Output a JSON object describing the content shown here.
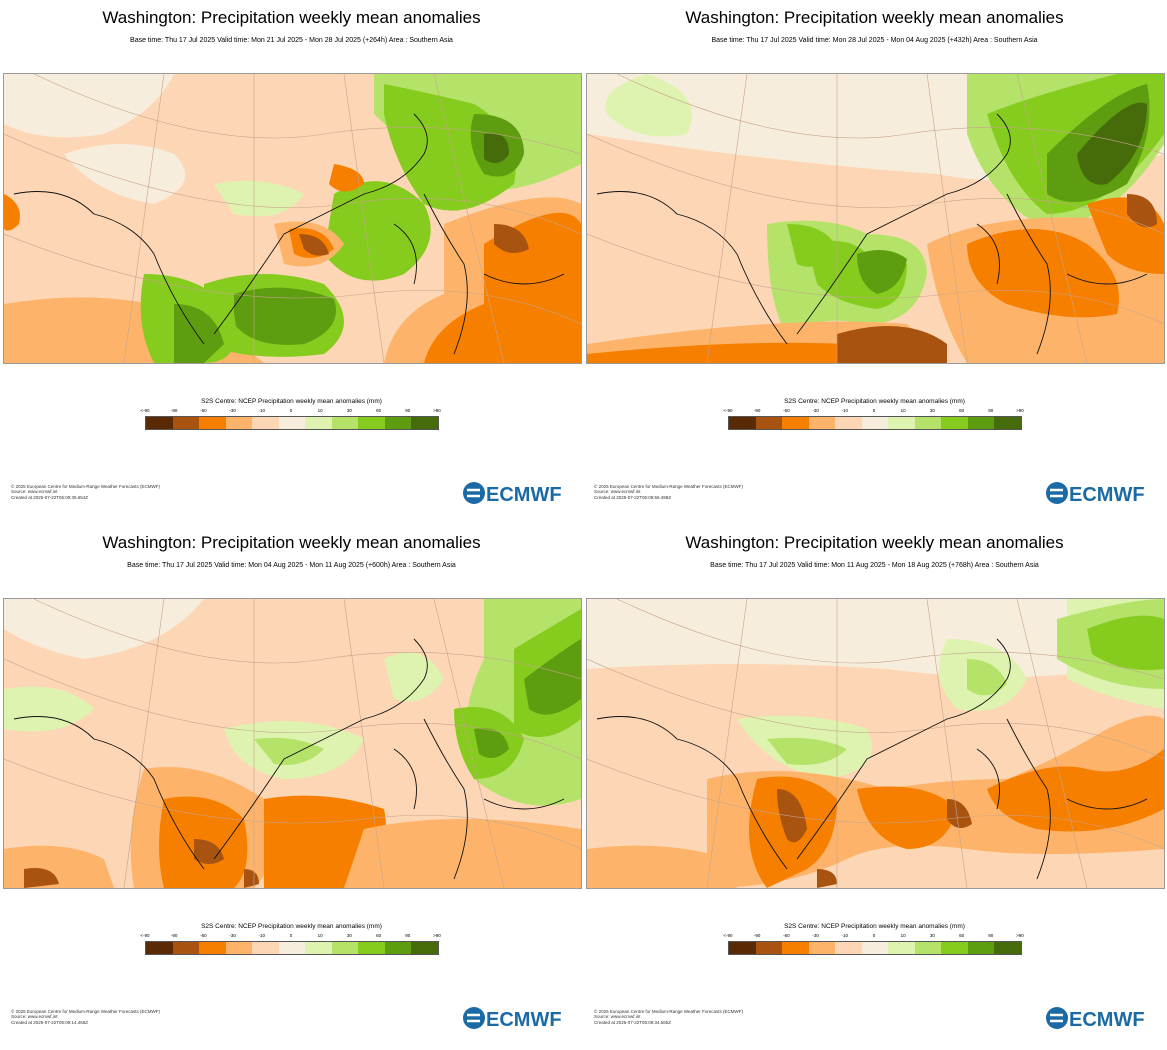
{
  "legend_colors": [
    "#5a2a05",
    "#a85310",
    "#f77f00",
    "#fdb46a",
    "#fdd6b5",
    "#f7eddc",
    "#dff3b0",
    "#b5e36a",
    "#86cc1f",
    "#5e9c10",
    "#466b0b"
  ],
  "legend_ticks": [
    "<-90",
    "-90",
    "-60",
    "-30",
    "-10",
    "0",
    "10",
    "30",
    "60",
    "90",
    ">90"
  ],
  "legend_title": "S2S Centre: NCEP Precipitation weekly mean anomalies (mm)",
  "logo_text": "ECMWF",
  "panels": [
    {
      "title": "Washington: Precipitation weekly mean anomalies",
      "subtitle": "Base time: Thu 17 Jul 2025 Valid time: Mon 21 Jul 2025 - Mon 28 Jul 2025 (+264h) Area : Southern Asia",
      "footer": [
        "© 2025 European Centre for Medium-Range Weather Forecasts (ECMWF)",
        "Source: www.ecmwf.int",
        "Created at 2025-07-22T05:09:35.654Z"
      ]
    },
    {
      "title": "Washington: Precipitation weekly mean anomalies",
      "subtitle": "Base time: Thu 17 Jul 2025 Valid time: Mon 28 Jul 2025 - Mon 04 Aug 2025 (+432h) Area : Southern Asia",
      "footer": [
        "© 2025 European Centre for Medium-Range Weather Forecasts (ECMWF)",
        "Source: www.ecmwf.int",
        "Created at 2025-07-22T05:09:56.498Z"
      ]
    },
    {
      "title": "Washington: Precipitation weekly mean anomalies",
      "subtitle": "Base time: Thu 17 Jul 2025 Valid time: Mon 04 Aug 2025 - Mon 11 Aug 2025 (+600h) Area : Southern Asia",
      "footer": [
        "© 2025 European Centre for Medium-Range Weather Forecasts (ECMWF)",
        "Source: www.ecmwf.int",
        "Created at 2025-07-22T05:09:14.469Z"
      ]
    },
    {
      "title": "Washington: Precipitation weekly mean anomalies",
      "subtitle": "Base time: Thu 17 Jul 2025 Valid time: Mon 11 Aug 2025 - Mon 18 Aug 2025 (+768h) Area : Southern Asia",
      "footer": [
        "© 2025 European Centre for Medium-Range Weather Forecasts (ECMWF)",
        "Source: www.ecmwf.int",
        "Created at 2025-07-22T05:09:34.565Z"
      ]
    }
  ]
}
